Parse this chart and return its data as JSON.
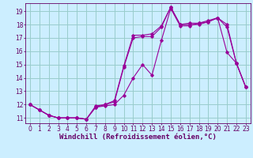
{
  "xlabel": "Windchill (Refroidissement éolien,°C)",
  "background_color": "#cceeff",
  "grid_color": "#99cccc",
  "line_color": "#990099",
  "x_ticks": [
    0,
    1,
    2,
    3,
    4,
    5,
    6,
    7,
    8,
    9,
    10,
    11,
    12,
    13,
    14,
    15,
    16,
    17,
    18,
    19,
    20,
    21,
    22,
    23
  ],
  "y_ticks": [
    11,
    12,
    13,
    14,
    15,
    16,
    17,
    18,
    19
  ],
  "ylim": [
    10.6,
    19.6
  ],
  "xlim": [
    -0.5,
    23.5
  ],
  "line1_x": [
    0,
    1,
    2,
    3,
    4,
    5,
    6,
    7,
    8,
    9,
    10,
    11,
    12,
    13,
    14,
    15,
    16,
    17,
    18,
    19,
    20,
    21,
    22,
    23
  ],
  "line1_y": [
    12.0,
    11.6,
    11.2,
    11.0,
    11.0,
    11.0,
    10.9,
    11.8,
    11.9,
    12.0,
    12.7,
    14.0,
    15.0,
    14.2,
    16.8,
    19.2,
    17.9,
    17.9,
    18.1,
    18.2,
    18.5,
    15.9,
    15.1,
    13.3
  ],
  "line2_x": [
    0,
    1,
    2,
    3,
    4,
    5,
    6,
    7,
    8,
    9,
    10,
    11,
    12,
    13,
    14,
    15,
    16,
    17,
    18,
    19,
    20,
    21,
    22,
    23
  ],
  "line2_y": [
    12.0,
    11.6,
    11.2,
    11.0,
    11.0,
    11.0,
    10.9,
    11.9,
    12.0,
    12.2,
    14.8,
    17.0,
    17.1,
    17.1,
    17.8,
    19.3,
    18.0,
    18.0,
    18.0,
    18.2,
    18.5,
    18.0,
    15.1,
    13.3
  ],
  "line3_x": [
    0,
    1,
    2,
    3,
    4,
    5,
    6,
    7,
    8,
    9,
    10,
    11,
    12,
    13,
    14,
    15,
    16,
    17,
    18,
    19,
    20,
    21,
    22,
    23
  ],
  "line3_y": [
    12.0,
    11.6,
    11.2,
    11.0,
    11.0,
    11.0,
    10.9,
    11.8,
    12.0,
    12.3,
    14.9,
    17.2,
    17.2,
    17.3,
    17.9,
    19.3,
    18.0,
    18.1,
    18.1,
    18.3,
    18.5,
    17.8,
    15.1,
    13.3
  ],
  "font_color": "#660066",
  "tick_fontsize": 5.5,
  "xlabel_fontsize": 6.5
}
